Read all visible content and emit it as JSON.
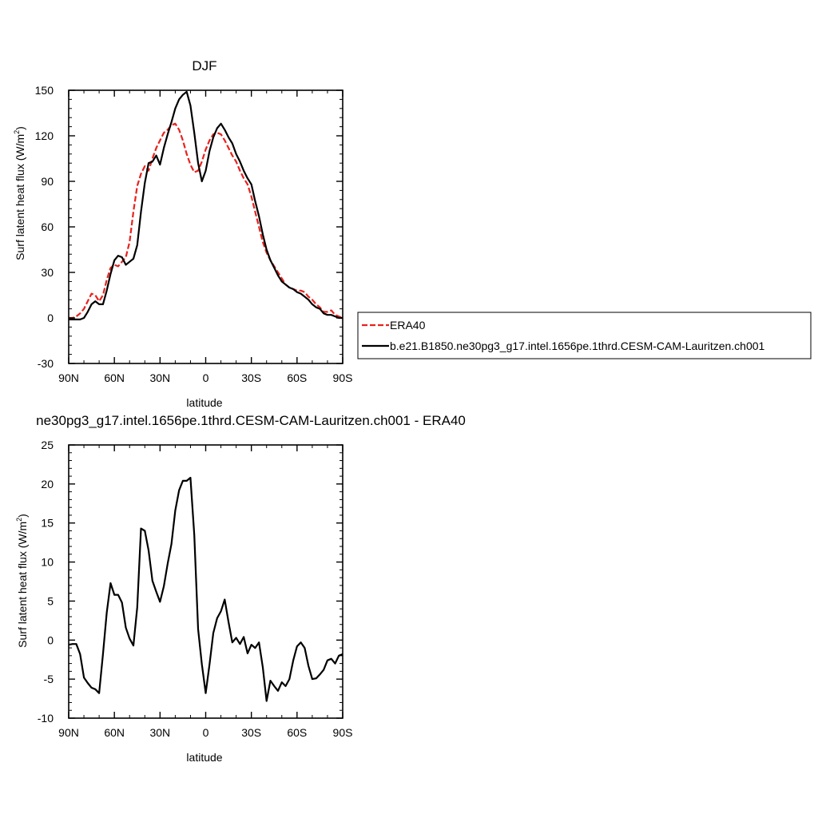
{
  "chart_data": [
    {
      "type": "line",
      "title": "DJF",
      "xlabel": "latitude",
      "ylabel": "Surf latent heat flux (W/m",
      "ylabel_sup": "2",
      "ylabel_close": ")",
      "xlim": [
        90,
        -90
      ],
      "ylim": [
        -30,
        150
      ],
      "xticks": [
        {
          "value": 90,
          "label": "90N"
        },
        {
          "value": 60,
          "label": "60N"
        },
        {
          "value": 30,
          "label": "30N"
        },
        {
          "value": 0,
          "label": "0"
        },
        {
          "value": -30,
          "label": "30S"
        },
        {
          "value": -60,
          "label": "60S"
        },
        {
          "value": -90,
          "label": "90S"
        }
      ],
      "yticks": [
        {
          "value": 150,
          "label": "150"
        },
        {
          "value": 120,
          "label": "120"
        },
        {
          "value": 90,
          "label": "90"
        },
        {
          "value": 60,
          "label": "60"
        },
        {
          "value": 30,
          "label": "30"
        },
        {
          "value": 0,
          "label": "0"
        },
        {
          "value": -30,
          "label": "-30"
        }
      ],
      "legend_position": "right",
      "series": [
        {
          "name": "ERA40",
          "color": "#e8221e",
          "dash": "dashed",
          "x": [
            90,
            87.5,
            85,
            82.5,
            80,
            77.5,
            75,
            72.5,
            70,
            67.5,
            65,
            62.5,
            60,
            57.5,
            55,
            52.5,
            50,
            47.5,
            45,
            42.5,
            40,
            37.5,
            35,
            32.5,
            30,
            27.5,
            25,
            22.5,
            20,
            17.5,
            15,
            12.5,
            10,
            7.5,
            5,
            2.5,
            0,
            -2.5,
            -5,
            -7.5,
            -10,
            -12.5,
            -15,
            -17.5,
            -20,
            -22.5,
            -25,
            -27.5,
            -30,
            -32.5,
            -35,
            -37.5,
            -40,
            -42.5,
            -45,
            -47.5,
            -50,
            -52.5,
            -55,
            -57.5,
            -60,
            -62.5,
            -65,
            -67.5,
            -70,
            -72.5,
            -75,
            -77.5,
            -80,
            -82.5,
            -85,
            -87.5,
            -90
          ],
          "y": [
            0,
            0,
            1,
            3,
            6,
            11,
            16,
            15,
            11,
            15,
            25,
            33,
            35,
            34,
            37,
            40,
            50,
            70,
            87,
            95,
            100,
            97,
            105,
            112,
            117,
            122,
            124,
            127,
            128,
            124,
            117,
            108,
            101,
            96,
            97,
            103,
            111,
            117,
            121,
            122,
            121,
            117,
            112,
            107,
            103,
            97,
            92,
            88,
            80,
            70,
            60,
            50,
            43,
            38,
            34,
            30,
            26,
            22,
            20,
            19,
            18,
            18,
            17,
            14,
            12,
            9,
            7,
            4,
            4,
            5,
            2,
            1,
            0
          ]
        },
        {
          "name": "b.e21.B1850.ne30pg3_g17.intel.1656pe.1thrd.CESM-CAM-Lauritzen.ch001",
          "color": "#000000",
          "dash": "solid",
          "x": [
            90,
            87.5,
            85,
            82.5,
            80,
            77.5,
            75,
            72.5,
            70,
            67.5,
            65,
            62.5,
            60,
            57.5,
            55,
            52.5,
            50,
            47.5,
            45,
            42.5,
            40,
            37.5,
            35,
            32.5,
            30,
            27.5,
            25,
            22.5,
            20,
            17.5,
            15,
            12.5,
            10,
            7.5,
            5,
            2.5,
            0,
            -2.5,
            -5,
            -7.5,
            -10,
            -12.5,
            -15,
            -17.5,
            -20,
            -22.5,
            -25,
            -27.5,
            -30,
            -32.5,
            -35,
            -37.5,
            -40,
            -42.5,
            -45,
            -47.5,
            -50,
            -52.5,
            -55,
            -57.5,
            -60,
            -62.5,
            -65,
            -67.5,
            -70,
            -72.5,
            -75,
            -77.5,
            -80,
            -82.5,
            -85,
            -87.5,
            -90
          ],
          "y": [
            -1,
            -1,
            -1,
            -1,
            0,
            4,
            9,
            11,
            9,
            9,
            18,
            29,
            38,
            41,
            40,
            35,
            37,
            39,
            48,
            70,
            89,
            102,
            103,
            107,
            101,
            112,
            121,
            129,
            138,
            144,
            147,
            149,
            140,
            122,
            102,
            90,
            97,
            110,
            119,
            125,
            128,
            124,
            119,
            115,
            108,
            103,
            97,
            92,
            88,
            77,
            67,
            55,
            45,
            38,
            33,
            28,
            24,
            22,
            20,
            19,
            17,
            16,
            14,
            12,
            9,
            7,
            6,
            3,
            2,
            2,
            1,
            0,
            0
          ]
        }
      ]
    },
    {
      "type": "line",
      "title": "ne30pg3_g17.intel.1656pe.1thrd.CESM-CAM-Lauritzen.ch001 - ERA40",
      "xlabel": "latitude",
      "ylabel": "Surf latent heat flux (W/m",
      "ylabel_sup": "2",
      "ylabel_close": ")",
      "xlim": [
        90,
        -90
      ],
      "ylim": [
        -10,
        25
      ],
      "xticks": [
        {
          "value": 90,
          "label": "90N"
        },
        {
          "value": 60,
          "label": "60N"
        },
        {
          "value": 30,
          "label": "30N"
        },
        {
          "value": 0,
          "label": "0"
        },
        {
          "value": -30,
          "label": "30S"
        },
        {
          "value": -60,
          "label": "60S"
        },
        {
          "value": -90,
          "label": "90S"
        }
      ],
      "yticks": [
        {
          "value": 25,
          "label": "25"
        },
        {
          "value": 20,
          "label": "20"
        },
        {
          "value": 15,
          "label": "15"
        },
        {
          "value": 10,
          "label": "10"
        },
        {
          "value": 5,
          "label": "5"
        },
        {
          "value": 0,
          "label": "0"
        },
        {
          "value": -5,
          "label": "-5"
        },
        {
          "value": -10,
          "label": "-10"
        }
      ],
      "series": [
        {
          "color": "#000000",
          "dash": "solid",
          "x": [
            90,
            87.5,
            85,
            82.5,
            80,
            77.5,
            75,
            72.5,
            70,
            67.5,
            65,
            62.5,
            60,
            57.5,
            55,
            52.5,
            50,
            47.5,
            45,
            42.5,
            40,
            37.5,
            35,
            32.5,
            30,
            27.5,
            25,
            22.5,
            20,
            17.5,
            15,
            12.5,
            10,
            7.5,
            5,
            2.5,
            0,
            -2.5,
            -5,
            -7.5,
            -10,
            -12.5,
            -15,
            -17.5,
            -20,
            -22.5,
            -25,
            -27.5,
            -30,
            -32.5,
            -35,
            -37.5,
            -40,
            -42.5,
            -45,
            -47.5,
            -50,
            -52.5,
            -55,
            -57.5,
            -60,
            -62.5,
            -65,
            -67.5,
            -70,
            -72.5,
            -75,
            -77.5,
            -80,
            -82.5,
            -85,
            -87.5,
            -90
          ],
          "y": [
            -0.6,
            -0.5,
            -0.5,
            -1.8,
            -4.8,
            -5.5,
            -6.1,
            -6.3,
            -6.8,
            -1.8,
            3.5,
            7.3,
            5.8,
            5.8,
            4.8,
            1.6,
            0.2,
            -0.7,
            4.2,
            14.3,
            14.0,
            11.5,
            7.6,
            6.2,
            4.9,
            6.9,
            9.8,
            12.3,
            16.6,
            19.2,
            20.4,
            20.4,
            20.8,
            13.5,
            1.4,
            -3.1,
            -6.8,
            -3.1,
            0.9,
            2.8,
            3.7,
            5.2,
            2.3,
            -0.3,
            0.3,
            -0.5,
            0.4,
            -1.7,
            -0.6,
            -1.0,
            -0.3,
            -3.5,
            -7.8,
            -5.2,
            -5.9,
            -6.5,
            -5.4,
            -5.9,
            -5.0,
            -2.6,
            -0.8,
            -0.3,
            -1.0,
            -3.3,
            -5.0,
            -4.9,
            -4.4,
            -3.8,
            -2.6,
            -2.4,
            -3.0,
            -2.0,
            -1.8
          ]
        }
      ]
    }
  ]
}
